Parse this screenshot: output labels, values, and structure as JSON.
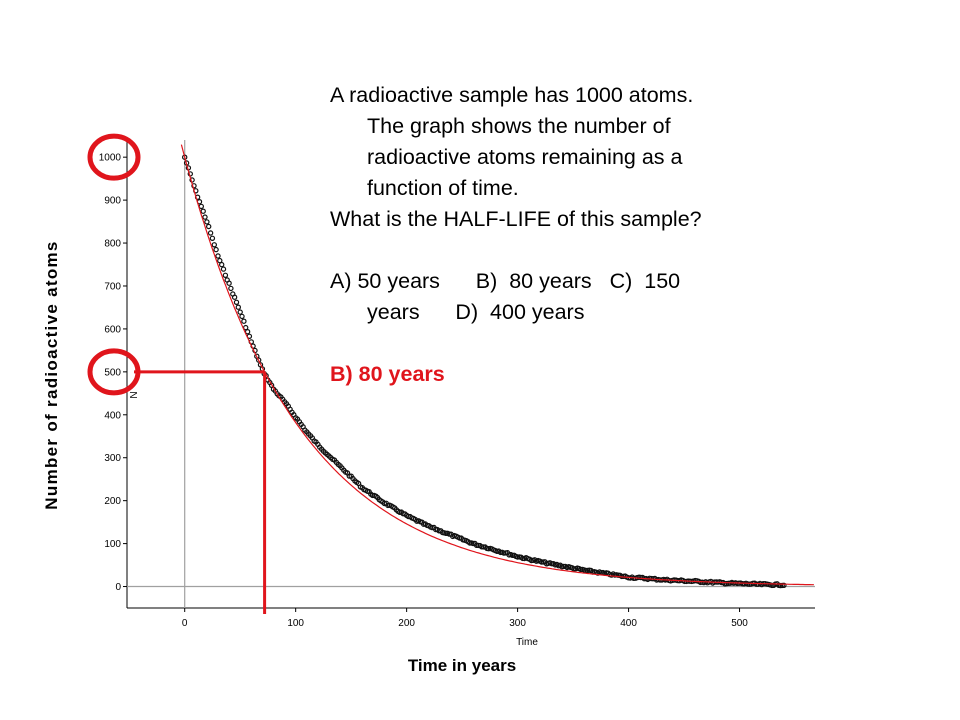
{
  "question": {
    "line1": "A radioactive sample has 1000 atoms.",
    "line2": "The graph shows the number of",
    "line3": "radioactive atoms remaining as a",
    "line4": "function of time.",
    "line5": "What is the HALF-LIFE of this sample?",
    "options_line1": "A) 50 years      B)  80 years   C)  150",
    "options_line2": "years      D)  400 years",
    "answer": "B) 80 years"
  },
  "colors": {
    "answer": "#e0151c",
    "annotation": "#e0151c",
    "fit_curve": "#e0151c",
    "data_points": "#111111",
    "zero_lines": "#a0a0a0"
  },
  "chart_data": {
    "type": "scatter",
    "xlabel": "Time in years",
    "ylabel": "Number of radioactive atoms",
    "inner_xlabel": "Time",
    "inner_ylabel": "N",
    "x_ticks": [
      0,
      100,
      200,
      300,
      400,
      500
    ],
    "y_ticks": [
      0,
      100,
      200,
      300,
      400,
      500,
      600,
      700,
      800,
      900,
      1000
    ],
    "x_tick_labels": [
      "0",
      "100",
      "200",
      "300",
      "400",
      "500"
    ],
    "y_tick_labels": [
      "0",
      "100",
      "200",
      "300",
      "400",
      "500",
      "600",
      "700",
      "800",
      "900",
      "1000"
    ],
    "xlim": [
      -52,
      568
    ],
    "ylim": [
      -50,
      1040
    ],
    "grid": false,
    "series": [
      {
        "kind": "measured",
        "x": [
          0,
          10,
          20,
          30,
          40,
          50,
          60,
          70,
          80,
          90,
          100,
          110,
          120,
          130,
          140,
          150,
          160,
          180,
          200,
          220,
          240,
          260,
          280,
          300,
          320,
          340,
          360,
          380,
          400,
          430,
          460,
          490,
          520,
          540
        ],
        "y": [
          1000,
          920,
          850,
          770,
          705,
          640,
          570,
          505,
          460,
          430,
          395,
          360,
          330,
          305,
          280,
          255,
          230,
          195,
          165,
          140,
          120,
          100,
          85,
          70,
          58,
          48,
          38,
          30,
          22,
          16,
          12,
          8,
          5,
          4
        ]
      },
      {
        "kind": "fit",
        "half_life": 72,
        "initial": 1000
      }
    ],
    "annotations": [
      {
        "type": "highlight",
        "axis": "y",
        "value": 1000
      },
      {
        "type": "highlight",
        "axis": "y",
        "value": 500
      },
      {
        "type": "guide",
        "from_y": 500,
        "to_x": 72
      }
    ]
  }
}
